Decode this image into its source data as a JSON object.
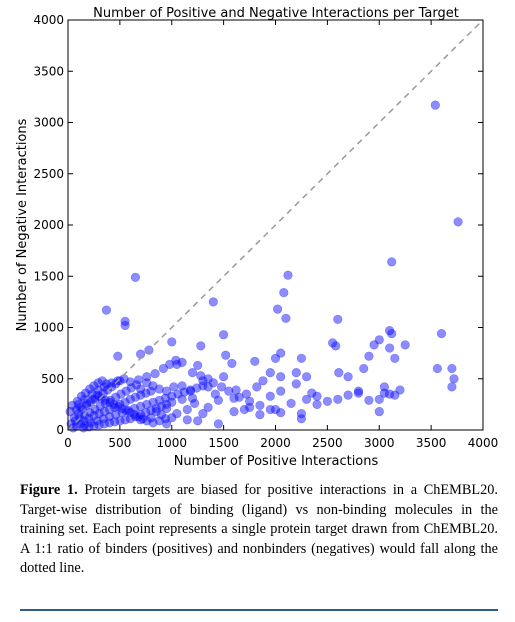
{
  "chart_data": {
    "type": "scatter",
    "title": "Number of Positive and Negative Interactions per Target",
    "xlabel": "Number of Positive Interactions",
    "ylabel": "Number of Negative Interactions",
    "xlim": [
      0,
      4000
    ],
    "ylim": [
      0,
      4000
    ],
    "xticks": [
      "0",
      "500",
      "1000",
      "1500",
      "2000",
      "2500",
      "3000",
      "3500",
      "4000"
    ],
    "yticks": [
      "0",
      "500",
      "1000",
      "1500",
      "2000",
      "2500",
      "3000",
      "3500",
      "4000"
    ],
    "grid": false,
    "point_color": "#0000ff",
    "reference_line": {
      "x": [
        0,
        4000
      ],
      "y": [
        0,
        4000
      ],
      "style": "dashed",
      "color": "#999999"
    },
    "points": [
      [
        650,
        1490
      ],
      [
        370,
        1170
      ],
      [
        550,
        1060
      ],
      [
        550,
        1020
      ],
      [
        480,
        720
      ],
      [
        780,
        780
      ],
      [
        700,
        740
      ],
      [
        1000,
        860
      ],
      [
        1100,
        660
      ],
      [
        1050,
        640
      ],
      [
        1280,
        820
      ],
      [
        1500,
        930
      ],
      [
        1400,
        1250
      ],
      [
        1250,
        630
      ],
      [
        1520,
        730
      ],
      [
        1580,
        650
      ],
      [
        1800,
        670
      ],
      [
        1500,
        520
      ],
      [
        1620,
        390
      ],
      [
        1720,
        350
      ],
      [
        1750,
        220
      ],
      [
        1850,
        150
      ],
      [
        2000,
        200
      ],
      [
        2050,
        380
      ],
      [
        1950,
        330
      ],
      [
        2120,
        1510
      ],
      [
        2080,
        1340
      ],
      [
        2020,
        1180
      ],
      [
        2100,
        1090
      ],
      [
        2050,
        750
      ],
      [
        2000,
        700
      ],
      [
        2200,
        560
      ],
      [
        2250,
        700
      ],
      [
        2300,
        520
      ],
      [
        2350,
        360
      ],
      [
        2200,
        450
      ],
      [
        2250,
        160
      ],
      [
        2250,
        110
      ],
      [
        2400,
        330
      ],
      [
        2550,
        850
      ],
      [
        2580,
        820
      ],
      [
        2600,
        1080
      ],
      [
        2610,
        560
      ],
      [
        2800,
        360
      ],
      [
        2950,
        830
      ],
      [
        2900,
        720
      ],
      [
        3000,
        880
      ],
      [
        3100,
        970
      ],
      [
        3120,
        940
      ],
      [
        3100,
        800
      ],
      [
        3050,
        420
      ],
      [
        3000,
        180
      ],
      [
        3100,
        350
      ],
      [
        3250,
        830
      ],
      [
        3120,
        1640
      ],
      [
        3540,
        3170
      ],
      [
        3760,
        2030
      ],
      [
        3600,
        940
      ],
      [
        3560,
        600
      ],
      [
        3700,
        600
      ],
      [
        3720,
        500
      ],
      [
        3700,
        420
      ],
      [
        3150,
        700
      ],
      [
        2850,
        600
      ],
      [
        2700,
        520
      ],
      [
        1300,
        480
      ],
      [
        1350,
        420
      ],
      [
        1200,
        310
      ],
      [
        1100,
        300
      ],
      [
        1450,
        290
      ],
      [
        1350,
        220
      ],
      [
        1150,
        200
      ],
      [
        1300,
        160
      ],
      [
        1600,
        180
      ],
      [
        1700,
        200
      ],
      [
        1420,
        350
      ],
      [
        1600,
        310
      ],
      [
        1020,
        420
      ],
      [
        950,
        380
      ],
      [
        880,
        400
      ],
      [
        820,
        430
      ],
      [
        760,
        460
      ],
      [
        700,
        400
      ],
      [
        1100,
        430
      ],
      [
        1180,
        380
      ],
      [
        1220,
        260
      ],
      [
        950,
        210
      ],
      [
        850,
        180
      ],
      [
        1050,
        160
      ],
      [
        1000,
        120
      ],
      [
        900,
        150
      ],
      [
        800,
        120
      ],
      [
        700,
        100
      ],
      [
        950,
        60
      ],
      [
        1150,
        100
      ],
      [
        1250,
        90
      ],
      [
        1450,
        60
      ],
      [
        50,
        20
      ],
      [
        80,
        40
      ],
      [
        120,
        60
      ],
      [
        150,
        90
      ],
      [
        200,
        110
      ],
      [
        250,
        140
      ],
      [
        300,
        160
      ],
      [
        350,
        180
      ],
      [
        400,
        200
      ],
      [
        450,
        220
      ],
      [
        500,
        250
      ],
      [
        550,
        270
      ],
      [
        600,
        300
      ],
      [
        650,
        320
      ],
      [
        700,
        340
      ],
      [
        750,
        360
      ],
      [
        800,
        380
      ],
      [
        60,
        120
      ],
      [
        100,
        160
      ],
      [
        140,
        200
      ],
      [
        180,
        240
      ],
      [
        220,
        270
      ],
      [
        260,
        300
      ],
      [
        300,
        330
      ],
      [
        340,
        360
      ],
      [
        380,
        390
      ],
      [
        420,
        420
      ],
      [
        460,
        450
      ],
      [
        500,
        480
      ],
      [
        30,
        60
      ],
      [
        70,
        90
      ],
      [
        110,
        120
      ],
      [
        160,
        140
      ],
      [
        210,
        170
      ],
      [
        260,
        200
      ],
      [
        310,
        230
      ],
      [
        360,
        260
      ],
      [
        410,
        290
      ],
      [
        460,
        320
      ],
      [
        510,
        350
      ],
      [
        560,
        380
      ],
      [
        610,
        410
      ],
      [
        660,
        440
      ],
      [
        20,
        180
      ],
      [
        40,
        240
      ],
      [
        90,
        280
      ],
      [
        130,
        330
      ],
      [
        170,
        360
      ],
      [
        210,
        400
      ],
      [
        250,
        430
      ],
      [
        290,
        460
      ],
      [
        330,
        480
      ],
      [
        370,
        450
      ],
      [
        150,
        20
      ],
      [
        200,
        30
      ],
      [
        250,
        40
      ],
      [
        300,
        50
      ],
      [
        350,
        60
      ],
      [
        400,
        70
      ],
      [
        450,
        80
      ],
      [
        500,
        90
      ],
      [
        550,
        100
      ],
      [
        600,
        110
      ],
      [
        650,
        130
      ],
      [
        700,
        150
      ],
      [
        750,
        170
      ],
      [
        800,
        190
      ],
      [
        850,
        210
      ],
      [
        900,
        230
      ],
      [
        950,
        250
      ],
      [
        1000,
        270
      ],
      [
        100,
        250
      ],
      [
        160,
        300
      ],
      [
        230,
        350
      ],
      [
        290,
        390
      ],
      [
        350,
        420
      ],
      [
        420,
        460
      ],
      [
        480,
        480
      ],
      [
        540,
        500
      ],
      [
        600,
        470
      ],
      [
        680,
        490
      ],
      [
        760,
        520
      ],
      [
        840,
        550
      ],
      [
        920,
        600
      ],
      [
        980,
        640
      ],
      [
        1040,
        680
      ],
      [
        1200,
        560
      ],
      [
        1280,
        530
      ],
      [
        1350,
        500
      ],
      [
        1400,
        460
      ],
      [
        1480,
        420
      ],
      [
        1550,
        380
      ],
      [
        1650,
        320
      ],
      [
        1750,
        280
      ],
      [
        1850,
        240
      ],
      [
        1950,
        200
      ],
      [
        2050,
        170
      ],
      [
        2150,
        260
      ],
      [
        2300,
        300
      ],
      [
        2400,
        250
      ],
      [
        2500,
        280
      ],
      [
        2600,
        300
      ],
      [
        2700,
        340
      ],
      [
        2800,
        380
      ],
      [
        2900,
        290
      ],
      [
        3000,
        300
      ],
      [
        3050,
        360
      ],
      [
        3150,
        340
      ],
      [
        3200,
        390
      ],
      [
        2050,
        520
      ],
      [
        1950,
        560
      ],
      [
        1880,
        480
      ],
      [
        1820,
        420
      ],
      [
        80,
        200
      ],
      [
        120,
        220
      ],
      [
        180,
        260
      ],
      [
        240,
        300
      ],
      [
        280,
        340
      ],
      [
        320,
        310
      ],
      [
        360,
        290
      ],
      [
        400,
        270
      ],
      [
        440,
        250
      ],
      [
        480,
        230
      ],
      [
        520,
        210
      ],
      [
        560,
        190
      ],
      [
        600,
        170
      ],
      [
        640,
        150
      ],
      [
        680,
        130
      ],
      [
        720,
        110
      ],
      [
        760,
        90
      ],
      [
        820,
        70
      ],
      [
        880,
        90
      ],
      [
        940,
        110
      ],
      [
        160,
        50
      ],
      [
        220,
        70
      ],
      [
        280,
        90
      ],
      [
        340,
        110
      ],
      [
        400,
        130
      ],
      [
        460,
        150
      ],
      [
        520,
        170
      ],
      [
        580,
        190
      ],
      [
        640,
        210
      ],
      [
        700,
        230
      ],
      [
        760,
        250
      ],
      [
        820,
        270
      ],
      [
        880,
        290
      ],
      [
        940,
        310
      ],
      [
        1000,
        330
      ],
      [
        1060,
        350
      ],
      [
        1120,
        370
      ],
      [
        1180,
        390
      ],
      [
        1240,
        410
      ],
      [
        1300,
        430
      ]
    ]
  },
  "caption": {
    "lead": "Figure 1.",
    "text": " Protein targets are biased for positive interactions in a ChEMBL20. Target-wise distribution of binding (ligand) vs non-binding molecules in the training set. Each point represents a single protein target drawn from ChEMBL20. A 1:1 ratio of binders (positives) and nonbinders (negatives) would fall along the dotted line."
  }
}
